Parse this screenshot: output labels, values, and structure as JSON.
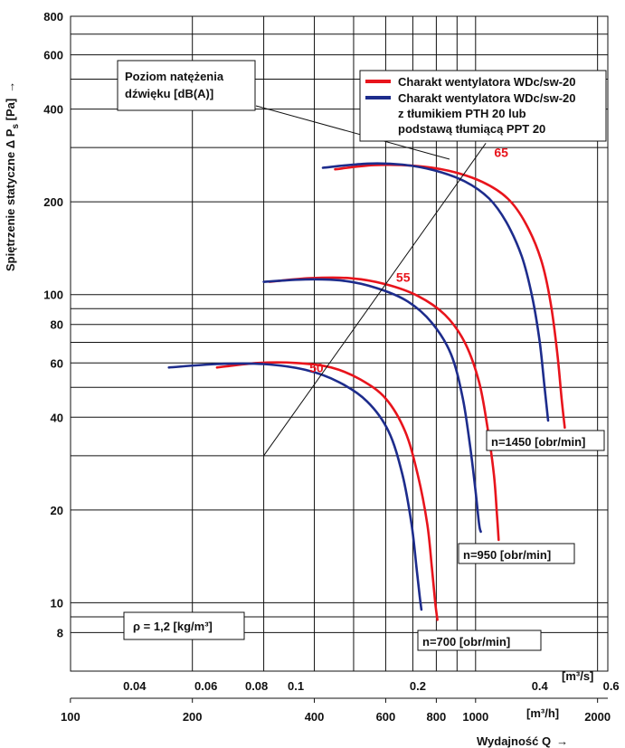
{
  "chart_data": {
    "type": "line",
    "y_axis": {
      "label": "Spiętrzenie statyczne Δ P",
      "label_sub": "s",
      "label_unit": "[Pa]",
      "arrow": "→",
      "scale": "log",
      "range": [
        6,
        800
      ],
      "ticks": [
        8,
        10,
        20,
        40,
        60,
        80,
        100,
        200,
        400,
        600,
        800
      ],
      "grid": [
        8,
        9,
        10,
        20,
        30,
        40,
        50,
        60,
        70,
        80,
        90,
        100,
        200,
        300,
        400,
        500,
        600,
        700,
        800
      ]
    },
    "x_axis_flow_m3s": {
      "scale": "log",
      "unit": "[m³/s]",
      "ticks": [
        0.04,
        0.06,
        0.08,
        0.1,
        0.2,
        0.4,
        0.6
      ],
      "tick_labels": [
        "0.04",
        "0.06",
        "0.08",
        "0.1",
        "0.2",
        "0.4",
        "0.6"
      ],
      "range": [
        0.0278,
        0.5889
      ]
    },
    "x_axis_flow_m3h": {
      "scale": "log",
      "label": "Wydajność Q",
      "arrow": "→",
      "unit": "[m³/h]",
      "ticks": [
        100,
        200,
        400,
        600,
        800,
        1000,
        2000
      ],
      "tick_labels": [
        "100",
        "200",
        "400",
        "600",
        "800",
        "1000",
        "2000"
      ],
      "grid": [
        200,
        300,
        400,
        500,
        600,
        700,
        800,
        900,
        1000,
        2000
      ]
    },
    "legend": {
      "placement": "top-right",
      "entries": [
        {
          "color": "#e8141c",
          "lines": [
            "Charakt wentylatora WDc/sw-20"
          ]
        },
        {
          "color": "#1d2c8c",
          "lines": [
            "Charakt wentylatora WDc/sw-20",
            "z tłumikiem PTH 20 lub",
            "podstawą tłumiącą PPT 20"
          ]
        }
      ]
    },
    "series": [
      {
        "name": "Charakt wentylatora WDc/sw-20",
        "speed_label": "n=1450 [obr/min]",
        "color": "#e8141c",
        "points": [
          [
            450,
            255
          ],
          [
            560,
            263
          ],
          [
            700,
            262
          ],
          [
            860,
            252
          ],
          [
            1040,
            232
          ],
          [
            1200,
            205
          ],
          [
            1330,
            170
          ],
          [
            1450,
            130
          ],
          [
            1530,
            95
          ],
          [
            1590,
            65
          ],
          [
            1630,
            46
          ],
          [
            1660,
            37
          ]
        ]
      },
      {
        "name": "Charakt wentylatora WDc/sw-20 z tłumikiem PTH 20 lub podstawą tłumiącą PPT 20",
        "speed_label": "n=1450 [obr/min]",
        "color": "#1d2c8c",
        "points": [
          [
            420,
            258
          ],
          [
            540,
            266
          ],
          [
            660,
            264
          ],
          [
            790,
            253
          ],
          [
            940,
            233
          ],
          [
            1080,
            205
          ],
          [
            1190,
            172
          ],
          [
            1300,
            133
          ],
          [
            1380,
            98
          ],
          [
            1440,
            70
          ],
          [
            1480,
            50
          ],
          [
            1510,
            39
          ]
        ]
      },
      {
        "name": "Charakt wentylatora WDc/sw-20",
        "speed_label": "n=950 [obr/min]",
        "color": "#e8141c",
        "points": [
          [
            310,
            110
          ],
          [
            390,
            113
          ],
          [
            490,
            113
          ],
          [
            600,
            108
          ],
          [
            720,
            99
          ],
          [
            840,
            86
          ],
          [
            940,
            70
          ],
          [
            1020,
            52
          ],
          [
            1070,
            37
          ],
          [
            1110,
            26
          ],
          [
            1130,
            19
          ],
          [
            1140,
            16
          ]
        ]
      },
      {
        "name": "Charakt wentylatora WDc/sw-20 z tłumikiem PTH 20 lub podstawą tłumiącą PPT 20",
        "speed_label": "n=950 [obr/min]",
        "color": "#1d2c8c",
        "points": [
          [
            300,
            110
          ],
          [
            380,
            112
          ],
          [
            470,
            111
          ],
          [
            570,
            105
          ],
          [
            680,
            95
          ],
          [
            780,
            81
          ],
          [
            870,
            64
          ],
          [
            930,
            46
          ],
          [
            970,
            32
          ],
          [
            1000,
            23
          ],
          [
            1020,
            18
          ],
          [
            1030,
            17
          ]
        ]
      },
      {
        "name": "Charakt wentylatora WDc/sw-20",
        "speed_label": "n=700 [obr/min]",
        "color": "#e8141c",
        "points": [
          [
            230,
            58
          ],
          [
            290,
            60
          ],
          [
            360,
            60
          ],
          [
            440,
            58
          ],
          [
            520,
            53
          ],
          [
            600,
            46
          ],
          [
            670,
            36
          ],
          [
            720,
            26
          ],
          [
            760,
            18
          ],
          [
            780,
            13
          ],
          [
            795,
            10
          ],
          [
            805,
            8.8
          ]
        ]
      },
      {
        "name": "Charakt wentylatora WDc/sw-20 z tłumikiem PTH 20 lub podstawą tłumiącą PPT 20",
        "speed_label": "n=700 [obr/min]",
        "color": "#1d2c8c",
        "points": [
          [
            175,
            58
          ],
          [
            230,
            59.5
          ],
          [
            300,
            59.5
          ],
          [
            380,
            57
          ],
          [
            460,
            52
          ],
          [
            540,
            45
          ],
          [
            610,
            36
          ],
          [
            660,
            26
          ],
          [
            695,
            18
          ],
          [
            715,
            13
          ],
          [
            728,
            10.5
          ],
          [
            735,
            9.5
          ]
        ]
      }
    ],
    "sound_level_line": {
      "label": "Poziom natężenia dźwięku [dB(A)]",
      "color": "#111111",
      "from": [
        300,
        30
      ],
      "to": [
        1060,
        310
      ],
      "marks": [
        {
          "value": "50",
          "color": "#e8141c",
          "at": [
            385,
            56
          ]
        },
        {
          "value": "55",
          "color": "#e8141c",
          "at": [
            630,
            110
          ]
        },
        {
          "value": "65",
          "color": "#e8141c",
          "at": [
            1100,
            280
          ]
        }
      ]
    },
    "speed_labels": [
      "n=1450 [obr/min]",
      "n=950 [obr/min]",
      "n=700 [obr/min]"
    ],
    "density_note": "ρ = 1,2 [kg/m³]",
    "grid": true
  }
}
